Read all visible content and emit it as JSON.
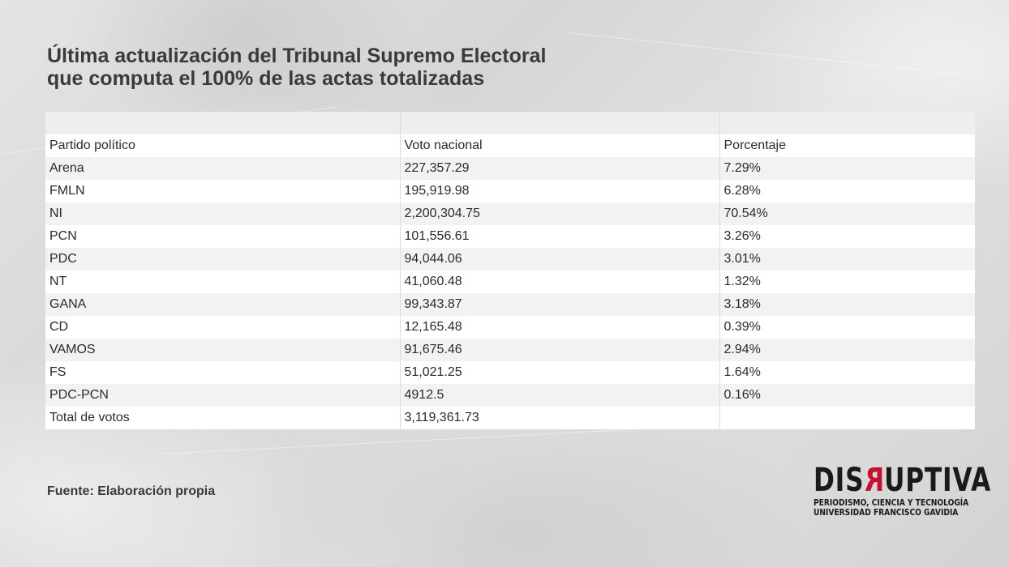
{
  "title": {
    "line1": "Última actualización del Tribunal Supremo Electoral",
    "line2": "que computa el 100% de las actas totalizadas"
  },
  "table": {
    "headers": [
      "Partido político",
      "Voto nacional",
      "Porcentaje"
    ],
    "rows": [
      [
        "Arena",
        "227,357.29",
        "7.29%"
      ],
      [
        "FMLN",
        "195,919.98",
        "6.28%"
      ],
      [
        "NI",
        "2,200,304.75",
        "70.54%"
      ],
      [
        "PCN",
        "101,556.61",
        "3.26%"
      ],
      [
        "PDC",
        "94,044.06",
        "3.01%"
      ],
      [
        "NT",
        "41,060.48",
        "1.32%"
      ],
      [
        "GANA",
        "99,343.87",
        "3.18%"
      ],
      [
        "CD",
        "12,165.48",
        "0.39%"
      ],
      [
        "VAMOS",
        "91,675.46",
        "2.94%"
      ],
      [
        "FS",
        "51,021.25",
        "1.64%"
      ],
      [
        "PDC-PCN",
        "4912.5",
        "0.16%"
      ]
    ],
    "total": [
      "Total de votos",
      "3,119,361.73",
      ""
    ]
  },
  "source": "Fuente: Elaboración propia",
  "logo": {
    "word_start": "DIS",
    "word_red": "R",
    "word_end": "UPTIVA",
    "line1": "PERIODISMO, CIENCIA Y TECNOLOGÍA",
    "line2": "UNIVERSIDAD FRANCISCO GAVIDIA",
    "accent_color": "#c8102e"
  }
}
